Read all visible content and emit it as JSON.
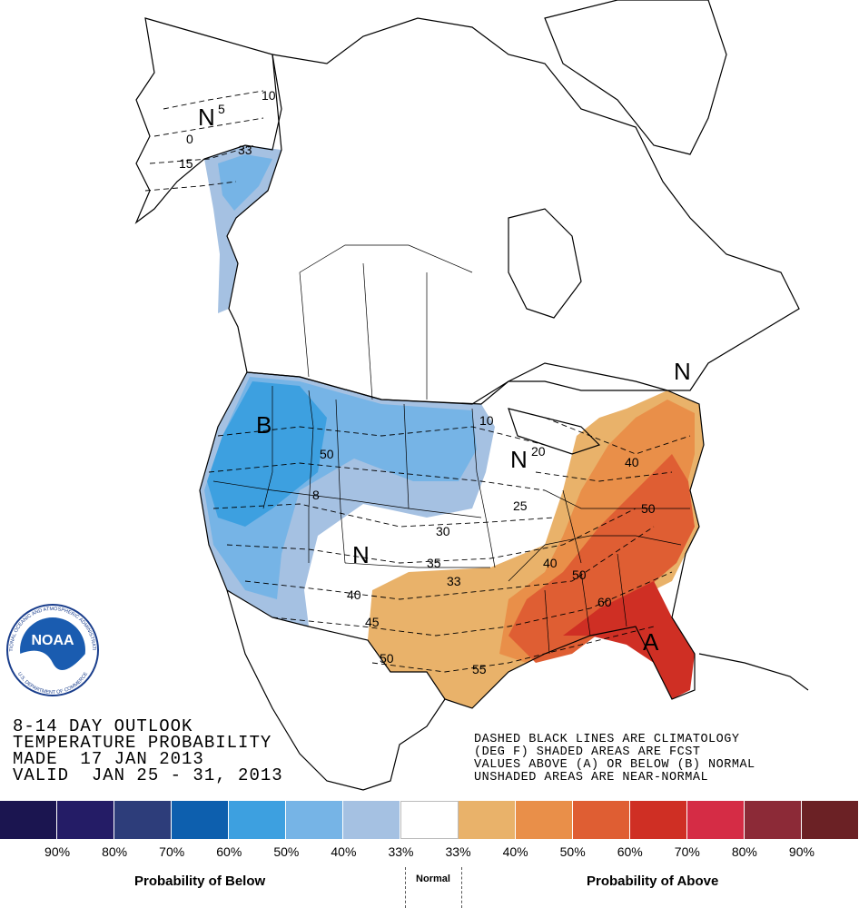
{
  "title": {
    "line1": "8-14 DAY OUTLOOK",
    "line2": "TEMPERATURE PROBABILITY",
    "line3": "MADE  17 JAN 2013",
    "line4": "VALID  JAN 25 - 31, 2013"
  },
  "notes": {
    "line1": "DASHED BLACK LINES ARE CLIMATOLOGY",
    "line2": "(DEG F) SHADED AREAS ARE FCST",
    "line3": "VALUES ABOVE (A) OR BELOW (B) NORMAL",
    "line4": "UNSHADED AREAS ARE NEAR-NORMAL"
  },
  "map_labels": {
    "n_alaska": "N",
    "n_northeast": "N",
    "n_midwest": "N",
    "n_southwest": "N",
    "b_northwest": "B",
    "a_florida": "A"
  },
  "contour_labels": {
    "ak_10": "10",
    "ak_5": "5",
    "ak_0": "0",
    "ak_15": "15",
    "ak_33": "33",
    "c10": "10",
    "c20": "20",
    "c25": "25",
    "c30": "30",
    "c33": "33",
    "c35": "35",
    "c40a": "40",
    "c40b": "40",
    "c40c": "40",
    "c45": "45",
    "c50a": "50",
    "c50b": "50",
    "c50c": "50",
    "c50d": "50",
    "c55": "55",
    "c60": "60",
    "c8": "8"
  },
  "legend": {
    "colors": [
      "#1b1550",
      "#241c66",
      "#2d3d7a",
      "#0d5fae",
      "#3da0e0",
      "#76b4e6",
      "#a5c1e2",
      "#ffffff",
      "#e9b26a",
      "#e98f49",
      "#df5e33",
      "#cf2f24",
      "#d52c45",
      "#8c2a37",
      "#6b2125"
    ],
    "percents": [
      "90%",
      "80%",
      "70%",
      "60%",
      "50%",
      "40%",
      "33%",
      "33%",
      "40%",
      "50%",
      "60%",
      "70%",
      "80%",
      "90%"
    ],
    "below_label": "Probability of Below",
    "normal_label": "Normal",
    "above_label": "Probability of Above"
  },
  "logo": {
    "name": "NOAA",
    "ring_text": "NATIONAL OCEANIC AND ATMOSPHERIC ADMINISTRATION",
    "bottom_text": "U.S. DEPARTMENT OF COMMERCE"
  },
  "colors": {
    "below_33": "#a5c1e2",
    "below_40": "#76b4e6",
    "below_50": "#3da0e0",
    "above_33": "#e9b26a",
    "above_40": "#e98f49",
    "above_50": "#df5e33",
    "above_60": "#cf2f24"
  }
}
